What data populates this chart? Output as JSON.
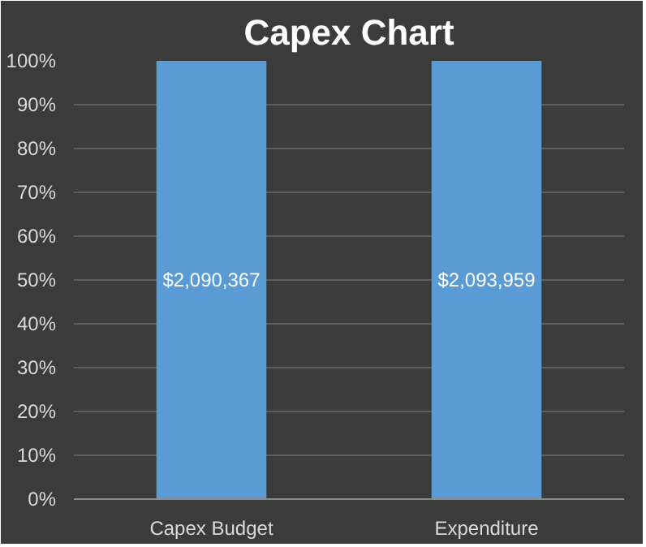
{
  "chart_data": {
    "type": "bar",
    "title": "Capex Chart",
    "categories": [
      "Capex Budget",
      "Expenditure"
    ],
    "series": [
      {
        "color": "#5b9bd5",
        "values": [
          100,
          100
        ]
      }
    ],
    "annotations": [
      "$2,090,367",
      "$2,093,959"
    ],
    "ylim": [
      0,
      100
    ],
    "yticks": [
      {
        "value": 0,
        "label": "0%"
      },
      {
        "value": 10,
        "label": "10%"
      },
      {
        "value": 20,
        "label": "20%"
      },
      {
        "value": 30,
        "label": "30%"
      },
      {
        "value": 40,
        "label": "40%"
      },
      {
        "value": 50,
        "label": "50%"
      },
      {
        "value": 60,
        "label": "60%"
      },
      {
        "value": 70,
        "label": "70%"
      },
      {
        "value": 80,
        "label": "80%"
      },
      {
        "value": 90,
        "label": "90%"
      },
      {
        "value": 100,
        "label": "100%"
      }
    ],
    "grid": "y"
  }
}
